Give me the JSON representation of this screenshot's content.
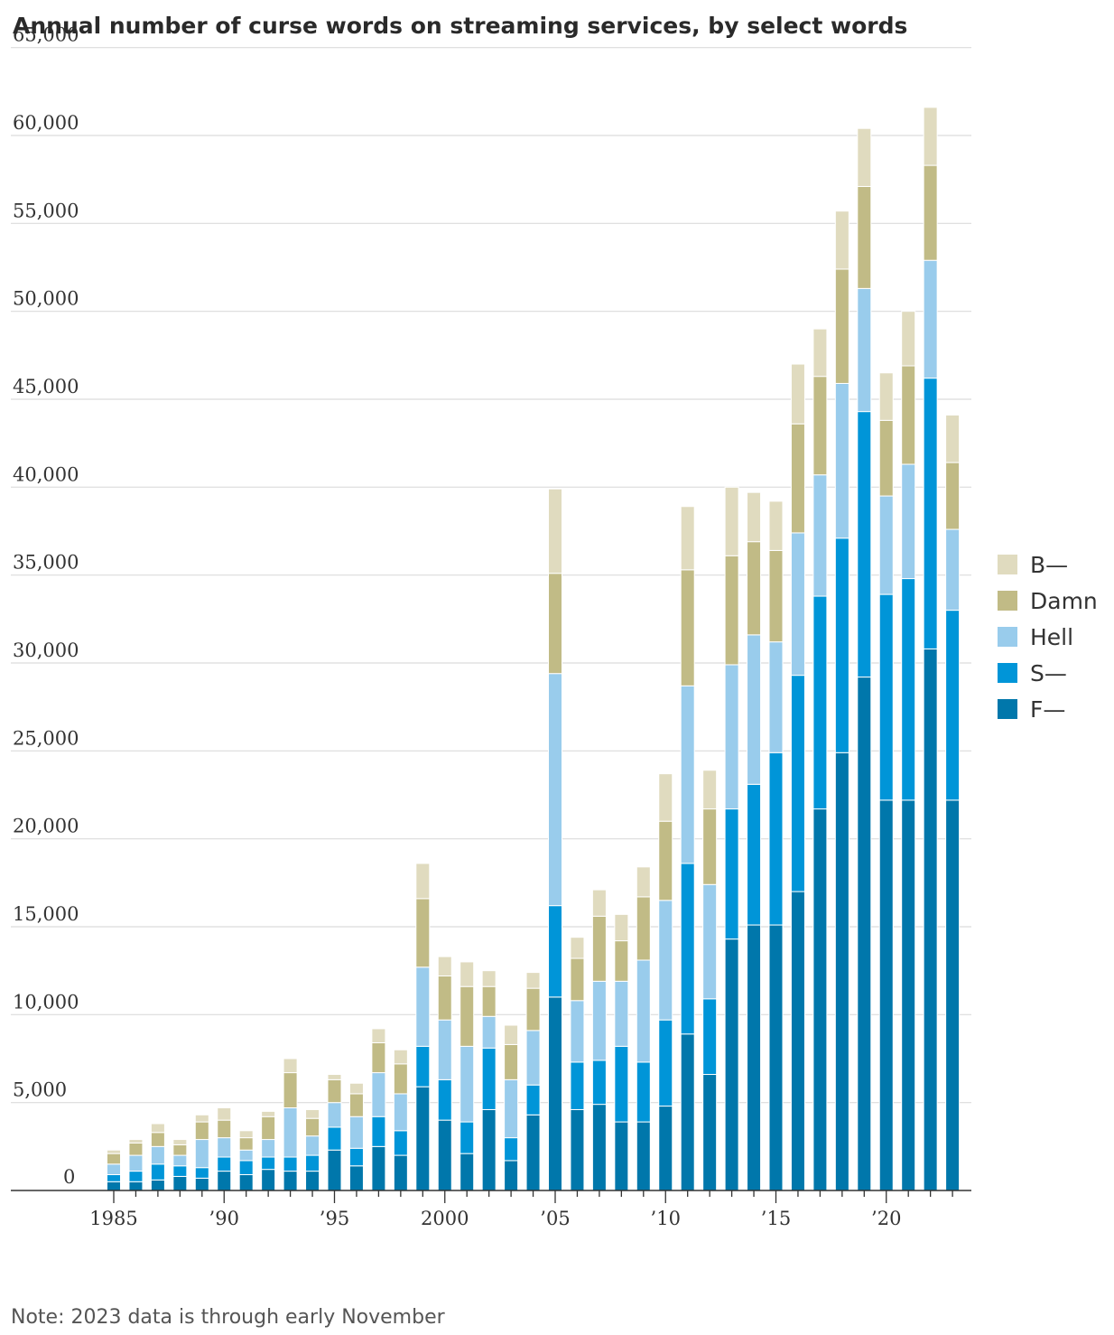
{
  "chart_data": {
    "type": "bar",
    "stacked": true,
    "title": "Annual number of curse words on streaming services, by select words",
    "note": "Note: 2023 data is through early November",
    "xlabel": "",
    "ylabel": "",
    "ylim": [
      0,
      65000
    ],
    "y_ticks": [
      0,
      5000,
      10000,
      15000,
      20000,
      25000,
      30000,
      35000,
      40000,
      45000,
      50000,
      55000,
      60000,
      65000
    ],
    "y_tick_labels": [
      "0",
      "5,000",
      "10,000",
      "15,000",
      "20,000",
      "25,000",
      "30,000",
      "35,000",
      "40,000",
      "45,000",
      "50,000",
      "55,000",
      "60,000",
      "65,000"
    ],
    "x_tick_labels": [
      {
        "year": 1985,
        "label": "1985"
      },
      {
        "year": 1990,
        "label": "’90"
      },
      {
        "year": 1995,
        "label": "’95"
      },
      {
        "year": 2000,
        "label": "2000"
      },
      {
        "year": 2005,
        "label": "’05"
      },
      {
        "year": 2010,
        "label": "’10"
      },
      {
        "year": 2015,
        "label": "’15"
      },
      {
        "year": 2020,
        "label": "’20"
      }
    ],
    "grid": true,
    "legend_position": "right",
    "categories": [
      1985,
      1986,
      1987,
      1988,
      1989,
      1990,
      1991,
      1992,
      1993,
      1994,
      1995,
      1996,
      1997,
      1998,
      1999,
      2000,
      2001,
      2002,
      2003,
      2004,
      2005,
      2006,
      2007,
      2008,
      2009,
      2010,
      2011,
      2012,
      2013,
      2014,
      2015,
      2016,
      2017,
      2018,
      2019,
      2020,
      2021,
      2022,
      2023
    ],
    "series": [
      {
        "name": "F—",
        "color": "#0077ab",
        "values": [
          500,
          500,
          600,
          800,
          700,
          1100,
          900,
          1200,
          1100,
          1100,
          2300,
          1400,
          2500,
          2000,
          5900,
          4000,
          2100,
          4600,
          1700,
          4300,
          11000,
          4600,
          4900,
          3900,
          3900,
          4800,
          8900,
          6600,
          14300,
          15100,
          15100,
          17000,
          21700,
          24900,
          29200,
          22200,
          22200,
          30800,
          22200
        ]
      },
      {
        "name": "S—",
        "color": "#0095d8",
        "values": [
          400,
          600,
          900,
          600,
          600,
          800,
          800,
          700,
          800,
          900,
          1300,
          1000,
          1700,
          1400,
          2300,
          2300,
          1800,
          3500,
          1300,
          1700,
          5200,
          2700,
          2500,
          4300,
          3400,
          4900,
          9700,
          4300,
          7400,
          8000,
          9800,
          12300,
          12100,
          12200,
          15100,
          11700,
          12600,
          15400,
          10800
        ]
      },
      {
        "name": "Hell",
        "color": "#99ccec",
        "values": [
          600,
          900,
          1000,
          600,
          1600,
          1100,
          600,
          1000,
          2800,
          1100,
          1400,
          1800,
          2500,
          2100,
          4500,
          3400,
          4300,
          1800,
          3300,
          3100,
          13200,
          3500,
          4500,
          3700,
          5800,
          6800,
          10100,
          6500,
          8200,
          8500,
          6300,
          8100,
          6900,
          8800,
          7000,
          5600,
          6500,
          6700,
          4600
        ]
      },
      {
        "name": "Damn",
        "color": "#c1bb86",
        "values": [
          600,
          700,
          800,
          600,
          1000,
          1000,
          700,
          1300,
          2000,
          1000,
          1300,
          1300,
          1700,
          1700,
          3900,
          2500,
          3400,
          1700,
          2000,
          2400,
          5700,
          2400,
          3700,
          2300,
          3600,
          4500,
          6600,
          4300,
          6200,
          5300,
          5200,
          6200,
          5600,
          6500,
          5800,
          4300,
          5600,
          5400,
          3800
        ]
      },
      {
        "name": "B—",
        "color": "#e0dbbf",
        "values": [
          200,
          200,
          500,
          300,
          400,
          700,
          400,
          300,
          800,
          500,
          300,
          600,
          800,
          800,
          2000,
          1100,
          1400,
          900,
          1100,
          900,
          4800,
          1200,
          1500,
          1500,
          1700,
          2700,
          3600,
          2200,
          3900,
          2800,
          2800,
          3400,
          2700,
          3300,
          3300,
          2700,
          3100,
          3300,
          2700
        ]
      }
    ]
  }
}
